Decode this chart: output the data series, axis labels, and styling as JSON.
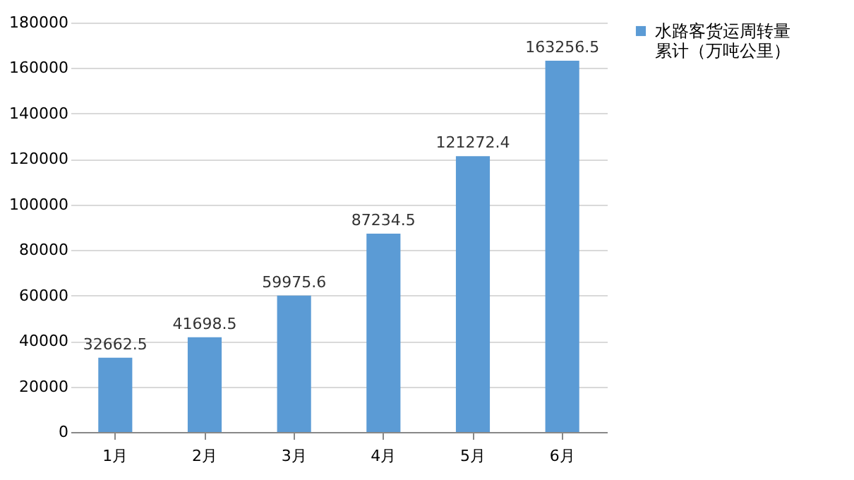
{
  "chart_data": {
    "type": "bar",
    "categories": [
      "1月",
      "2月",
      "3月",
      "4月",
      "5月",
      "6月"
    ],
    "series": [
      {
        "name": "水路客货运周转量累计（万吨公里）",
        "color": "#5b9bd5",
        "values": [
          32662.5,
          41698.5,
          59975.6,
          87234.5,
          121272.4,
          163256.5
        ]
      }
    ],
    "ylim": [
      0,
      180000
    ],
    "yticks": [
      0,
      20000,
      40000,
      60000,
      80000,
      100000,
      120000,
      140000,
      160000,
      180000
    ],
    "grid": "y",
    "legend": "right",
    "data_labels": true
  }
}
